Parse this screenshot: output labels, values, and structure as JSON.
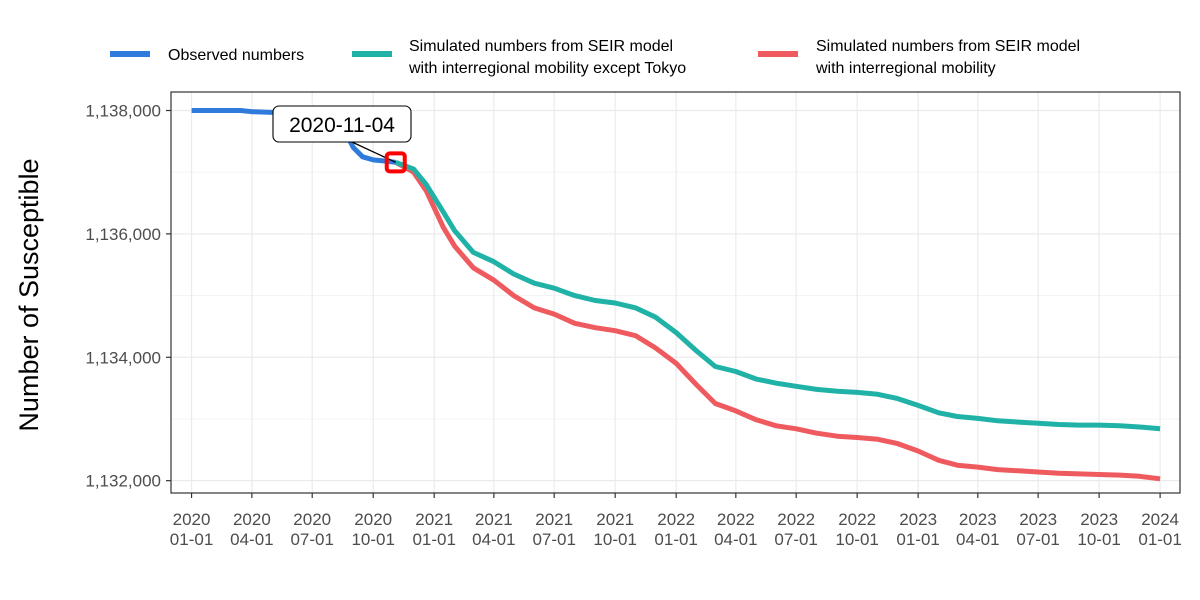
{
  "chart_data": {
    "type": "line",
    "ylabel": "Number of Susceptible",
    "xlabel": "",
    "ylim": [
      1131800,
      1138300
    ],
    "xlim": [
      "2019-12-01",
      "2024-01-31"
    ],
    "yticks": [
      1132000,
      1134000,
      1136000,
      1138000
    ],
    "ytick_labels": [
      "1,132,000",
      "1,134,000",
      "1,136,000",
      "1,138,000"
    ],
    "xticks": [
      {
        "date": "2020-01-01",
        "line1": "2020",
        "line2": "01-01"
      },
      {
        "date": "2020-04-01",
        "line1": "2020",
        "line2": "04-01"
      },
      {
        "date": "2020-07-01",
        "line1": "2020",
        "line2": "07-01"
      },
      {
        "date": "2020-10-01",
        "line1": "2020",
        "line2": "10-01"
      },
      {
        "date": "2021-01-01",
        "line1": "2021",
        "line2": "01-01"
      },
      {
        "date": "2021-04-01",
        "line1": "2021",
        "line2": "04-01"
      },
      {
        "date": "2021-07-01",
        "line1": "2021",
        "line2": "07-01"
      },
      {
        "date": "2021-10-01",
        "line1": "2021",
        "line2": "10-01"
      },
      {
        "date": "2022-01-01",
        "line1": "2022",
        "line2": "01-01"
      },
      {
        "date": "2022-04-01",
        "line1": "2022",
        "line2": "04-01"
      },
      {
        "date": "2022-07-01",
        "line1": "2022",
        "line2": "07-01"
      },
      {
        "date": "2022-10-01",
        "line1": "2022",
        "line2": "10-01"
      },
      {
        "date": "2023-01-01",
        "line1": "2023",
        "line2": "01-01"
      },
      {
        "date": "2023-04-01",
        "line1": "2023",
        "line2": "04-01"
      },
      {
        "date": "2023-07-01",
        "line1": "2023",
        "line2": "07-01"
      },
      {
        "date": "2023-10-01",
        "line1": "2023",
        "line2": "10-01"
      },
      {
        "date": "2024-01-01",
        "line1": "2024",
        "line2": "01-01"
      }
    ],
    "grid": true,
    "legend_position": "top",
    "series": [
      {
        "name": "Observed numbers",
        "color": "#2E7BDB",
        "points": [
          [
            "2020-01-01",
            1138000
          ],
          [
            "2020-03-15",
            1138000
          ],
          [
            "2020-04-01",
            1137980
          ],
          [
            "2020-05-01",
            1137970
          ],
          [
            "2020-07-01",
            1137960
          ],
          [
            "2020-08-01",
            1137880
          ],
          [
            "2020-08-20",
            1137650
          ],
          [
            "2020-09-01",
            1137400
          ],
          [
            "2020-09-15",
            1137250
          ],
          [
            "2020-10-01",
            1137200
          ],
          [
            "2020-10-20",
            1137180
          ],
          [
            "2020-11-04",
            1137160
          ]
        ]
      },
      {
        "name_line1": "Simulated numbers from SEIR model",
        "name_line2": "with interregional mobility except Tokyo",
        "color": "#20B2A6",
        "points": [
          [
            "2020-11-04",
            1137160
          ],
          [
            "2020-12-01",
            1137050
          ],
          [
            "2020-12-20",
            1136800
          ],
          [
            "2021-01-15",
            1136350
          ],
          [
            "2021-02-01",
            1136050
          ],
          [
            "2021-03-01",
            1135700
          ],
          [
            "2021-04-01",
            1135550
          ],
          [
            "2021-05-01",
            1135350
          ],
          [
            "2021-06-01",
            1135200
          ],
          [
            "2021-07-01",
            1135120
          ],
          [
            "2021-08-01",
            1135000
          ],
          [
            "2021-09-01",
            1134920
          ],
          [
            "2021-10-01",
            1134880
          ],
          [
            "2021-11-01",
            1134800
          ],
          [
            "2021-12-01",
            1134650
          ],
          [
            "2022-01-01",
            1134400
          ],
          [
            "2022-02-01",
            1134100
          ],
          [
            "2022-03-01",
            1133850
          ],
          [
            "2022-04-01",
            1133770
          ],
          [
            "2022-05-01",
            1133650
          ],
          [
            "2022-06-01",
            1133580
          ],
          [
            "2022-07-01",
            1133530
          ],
          [
            "2022-08-01",
            1133480
          ],
          [
            "2022-09-01",
            1133450
          ],
          [
            "2022-10-01",
            1133430
          ],
          [
            "2022-11-01",
            1133400
          ],
          [
            "2022-12-01",
            1133330
          ],
          [
            "2023-01-01",
            1133220
          ],
          [
            "2023-02-01",
            1133100
          ],
          [
            "2023-03-01",
            1133040
          ],
          [
            "2023-04-01",
            1133010
          ],
          [
            "2023-05-01",
            1132970
          ],
          [
            "2023-06-01",
            1132950
          ],
          [
            "2023-07-01",
            1132930
          ],
          [
            "2023-08-01",
            1132910
          ],
          [
            "2023-09-01",
            1132900
          ],
          [
            "2023-10-01",
            1132900
          ],
          [
            "2023-11-01",
            1132890
          ],
          [
            "2023-12-01",
            1132870
          ],
          [
            "2024-01-01",
            1132840
          ]
        ]
      },
      {
        "name_line1": "Simulated numbers from SEIR model",
        "name_line2": "with interregional mobility",
        "color": "#EF5A5F",
        "points": [
          [
            "2020-11-04",
            1137160
          ],
          [
            "2020-12-01",
            1137000
          ],
          [
            "2020-12-20",
            1136700
          ],
          [
            "2021-01-15",
            1136100
          ],
          [
            "2021-02-01",
            1135800
          ],
          [
            "2021-03-01",
            1135450
          ],
          [
            "2021-04-01",
            1135250
          ],
          [
            "2021-05-01",
            1135000
          ],
          [
            "2021-06-01",
            1134800
          ],
          [
            "2021-07-01",
            1134700
          ],
          [
            "2021-08-01",
            1134550
          ],
          [
            "2021-09-01",
            1134480
          ],
          [
            "2021-10-01",
            1134430
          ],
          [
            "2021-11-01",
            1134350
          ],
          [
            "2021-12-01",
            1134150
          ],
          [
            "2022-01-01",
            1133900
          ],
          [
            "2022-02-01",
            1133550
          ],
          [
            "2022-03-01",
            1133250
          ],
          [
            "2022-04-01",
            1133130
          ],
          [
            "2022-05-01",
            1132990
          ],
          [
            "2022-06-01",
            1132890
          ],
          [
            "2022-07-01",
            1132840
          ],
          [
            "2022-08-01",
            1132770
          ],
          [
            "2022-09-01",
            1132720
          ],
          [
            "2022-10-01",
            1132700
          ],
          [
            "2022-11-01",
            1132670
          ],
          [
            "2022-12-01",
            1132600
          ],
          [
            "2023-01-01",
            1132480
          ],
          [
            "2023-02-01",
            1132330
          ],
          [
            "2023-03-01",
            1132250
          ],
          [
            "2023-04-01",
            1132220
          ],
          [
            "2023-05-01",
            1132180
          ],
          [
            "2023-06-01",
            1132160
          ],
          [
            "2023-07-01",
            1132140
          ],
          [
            "2023-08-01",
            1132120
          ],
          [
            "2023-09-01",
            1132110
          ],
          [
            "2023-10-01",
            1132100
          ],
          [
            "2023-11-01",
            1132090
          ],
          [
            "2023-12-01",
            1132070
          ],
          [
            "2024-01-01",
            1132030
          ]
        ]
      }
    ],
    "annotation": {
      "label": "2020-11-04",
      "point": [
        "2020-11-04",
        1137160
      ],
      "marker_color": "#FF0000"
    }
  }
}
